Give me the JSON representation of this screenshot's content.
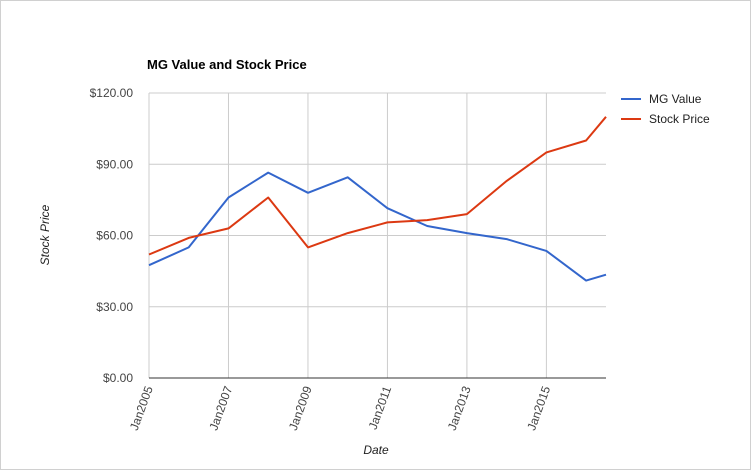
{
  "chart_data": {
    "type": "line",
    "title": "MG Value and Stock Price",
    "xlabel": "Date",
    "ylabel": "Stock Price",
    "x": [
      2005,
      2006,
      2007,
      2008,
      2009,
      2010,
      2011,
      2012,
      2013,
      2014,
      2015,
      2016,
      2016.5
    ],
    "x_tick_values": [
      2005,
      2007,
      2009,
      2011,
      2013,
      2015
    ],
    "x_tick_labels": [
      "Jan2005",
      "Jan2007",
      "Jan2009",
      "Jan2011",
      "Jan2013",
      "Jan2015"
    ],
    "xlim": [
      2005,
      2016.5
    ],
    "ylim": [
      0,
      120
    ],
    "y_tick_values": [
      0,
      30,
      60,
      90,
      120
    ],
    "y_tick_labels": [
      "$0.00",
      "$30.00",
      "$60.00",
      "$90.00",
      "$120.00"
    ],
    "grid": true,
    "legend_position": "right",
    "series": [
      {
        "name": "MG Value",
        "color": "#3366cc",
        "values": [
          47.5,
          55,
          76,
          86.5,
          78,
          84.5,
          71.5,
          64,
          61,
          58.5,
          53.5,
          41,
          43.5
        ]
      },
      {
        "name": "Stock Price",
        "color": "#dc3912",
        "values": [
          52,
          59,
          63,
          76,
          55,
          61,
          65.5,
          66.5,
          69,
          83,
          95,
          100,
          110
        ]
      }
    ]
  }
}
